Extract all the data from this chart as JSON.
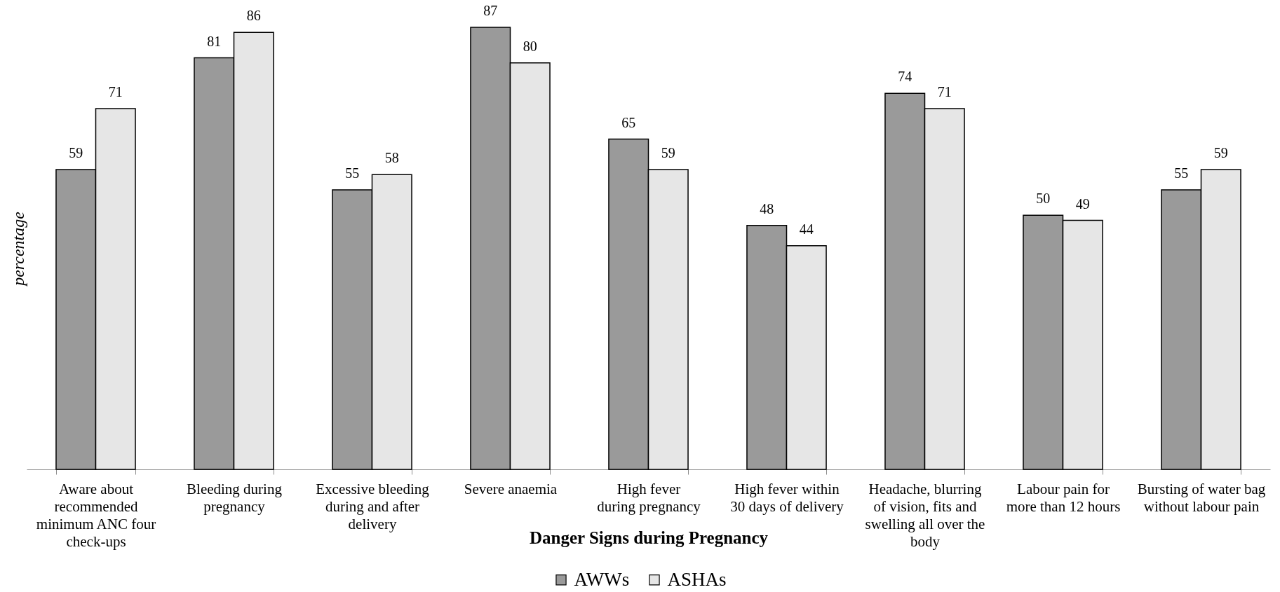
{
  "chart_data": {
    "type": "bar",
    "xlabel": "Danger Signs during Pregnancy",
    "ylabel": "percentage",
    "categories": [
      "Aware about recommended minimum ANC four check-ups",
      "Bleeding during pregnancy",
      "Excessive bleeding during and after delivery",
      "Severe anaemia",
      "High fever during pregnancy",
      "High fever within 30 days of delivery",
      "Headache, blurring of vision, fits and swelling all over the body",
      "Labour pain for more than 12 hours",
      "Bursting of water bag without labour pain"
    ],
    "series": [
      {
        "name": "AWWs",
        "color": "#9a9a9a",
        "values": [
          59,
          81,
          55,
          87,
          65,
          48,
          74,
          50,
          55
        ]
      },
      {
        "name": "ASHAs",
        "color": "#e6e6e6",
        "values": [
          71,
          86,
          58,
          80,
          59,
          44,
          71,
          49,
          59
        ]
      }
    ],
    "data_labels": true,
    "legend": "bottom",
    "tick_labels": "x"
  }
}
